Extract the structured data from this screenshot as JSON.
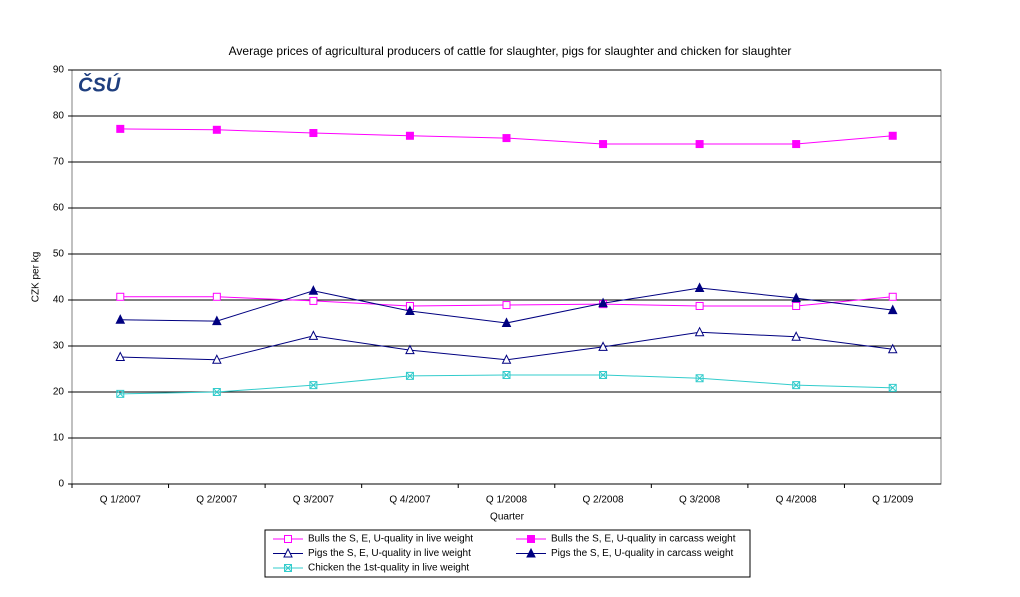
{
  "chart_data": {
    "type": "line",
    "title": "Average prices of agricultural producers of cattle for slaughter, pigs for slaughter and chicken for slaughter",
    "logo": "ČSÚ",
    "x_label": "Quarter",
    "y_label": "CZK per kg",
    "categories": [
      "Q 1/2007",
      "Q 2/2007",
      "Q 3/2007",
      "Q 4/2007",
      "Q 1/2008",
      "Q 2/2008",
      "Q 3/2008",
      "Q 4/2008",
      "Q 1/2009"
    ],
    "ylim": [
      0,
      90
    ],
    "yticks": [
      0,
      10,
      20,
      30,
      40,
      50,
      60,
      70,
      80,
      90
    ],
    "grid": true,
    "legend": "bottom",
    "series": [
      {
        "name": "Bulls the S, E, U-quality in live weight",
        "color": "#ff00ff",
        "marker": "square-open",
        "values": [
          40.7,
          40.7,
          39.8,
          38.7,
          38.9,
          39.1,
          38.7,
          38.7,
          40.7
        ]
      },
      {
        "name": "Bulls the S, E, U-quality in carcass weight",
        "color": "#ff00ff",
        "marker": "square",
        "values": [
          77.2,
          77.0,
          76.3,
          75.7,
          75.2,
          73.9,
          73.9,
          73.9,
          75.7
        ]
      },
      {
        "name": "Pigs the S, E, U-quality in live weight",
        "color": "#000080",
        "marker": "triangle-open",
        "values": [
          27.6,
          27.0,
          32.2,
          29.1,
          27.0,
          29.8,
          33.0,
          32.0,
          29.3
        ]
      },
      {
        "name": "Pigs the S, E, U-quality in carcass weight",
        "color": "#000080",
        "marker": "triangle",
        "values": [
          35.7,
          35.4,
          42.0,
          37.6,
          35.0,
          39.3,
          42.6,
          40.4,
          37.8
        ]
      },
      {
        "name": "Chicken the 1st-quality in live weight",
        "color": "#33cccc",
        "marker": "star",
        "values": [
          19.6,
          20.0,
          21.5,
          23.5,
          23.7,
          23.7,
          23.0,
          21.5,
          20.9
        ]
      }
    ]
  }
}
